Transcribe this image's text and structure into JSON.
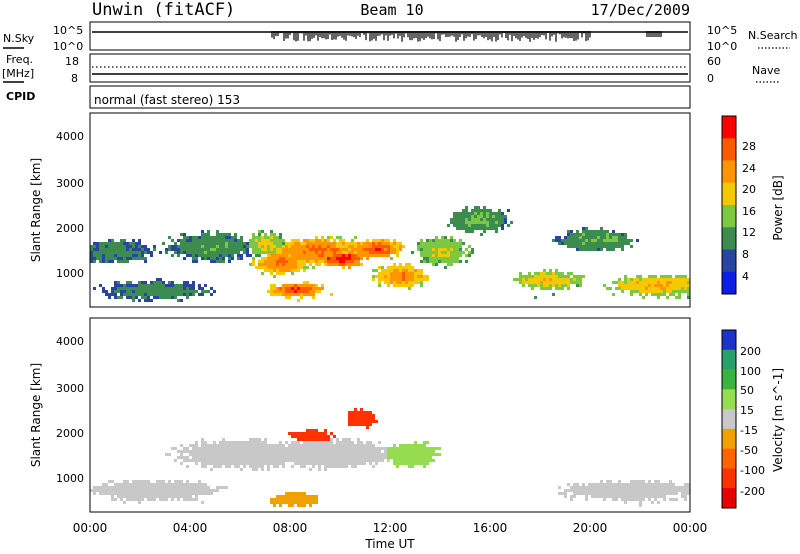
{
  "header": {
    "station": "Unwin (fitACF)",
    "beam": "Beam 10",
    "date": "17/Dec/2009"
  },
  "noise_panel": {
    "left_label": "N.Sky",
    "right_label": "N.Search",
    "left_ticks": [
      "10^5",
      "10^0"
    ],
    "right_ticks": [
      "10^5",
      "10^0"
    ]
  },
  "freq_panel": {
    "left_label_1": "Freq.",
    "left_label_2": "[MHz]",
    "right_label": "Nave",
    "left_ticks": [
      "18",
      "8"
    ],
    "right_ticks": [
      "60",
      "0"
    ]
  },
  "cpid_panel": {
    "label": "CPID",
    "program": "normal (fast stereo) 153"
  },
  "power_panel": {
    "ylabel": "Slant Range [km]",
    "yticks": [
      "4000",
      "3000",
      "2000",
      "1000"
    ],
    "colorbar_label": "Power [dB]",
    "colorbar_ticks": [
      "28",
      "24",
      "20",
      "16",
      "12",
      "8",
      "4"
    ],
    "colorbar_colors": [
      "#ff0000",
      "#ff5a00",
      "#ff9600",
      "#f5c800",
      "#7dc841",
      "#3c8c50",
      "#2846a0",
      "#0a1ee6"
    ]
  },
  "velocity_panel": {
    "ylabel": "Slant Range [km]",
    "yticks": [
      "4000",
      "3000",
      "2000",
      "1000"
    ],
    "colorbar_label": "Velocity [m s^-1]",
    "colorbar_ticks": [
      "200",
      "100",
      "50",
      "15",
      "-15",
      "-50",
      "-100",
      "-200"
    ],
    "colorbar_colors": [
      "#1e32c8",
      "#28a06e",
      "#3cb43c",
      "#96dc50",
      "#c8c8c8",
      "#f0a000",
      "#ff6400",
      "#ff3200",
      "#e60000"
    ]
  },
  "xaxis": {
    "label": "Time UT",
    "ticks": [
      "00:00",
      "04:00",
      "08:00",
      "12:00",
      "16:00",
      "20:00",
      "00:00"
    ]
  },
  "chart_data": {
    "type": "heatmap",
    "title": "Unwin (fitACF) Beam 10 17/Dec/2009",
    "xlabel": "Time UT",
    "ylabel": "Slant Range [km]",
    "x_range_hours": [
      0,
      24
    ],
    "ylim": [
      180,
      4500
    ],
    "series": [
      {
        "name": "Power [dB]",
        "colorbar_range": [
          0,
          30
        ],
        "blobs": [
          {
            "t": 1.0,
            "r": 1450,
            "dt": 1.4,
            "dr": 260,
            "v": 8
          },
          {
            "t": 2.5,
            "r": 600,
            "dt": 2.0,
            "dr": 180,
            "v": 8
          },
          {
            "t": 4.8,
            "r": 1550,
            "dt": 1.6,
            "dr": 300,
            "v": 9
          },
          {
            "t": 7.0,
            "r": 1600,
            "dt": 0.8,
            "dr": 260,
            "v": 15
          },
          {
            "t": 7.6,
            "r": 1200,
            "dt": 1.0,
            "dr": 250,
            "v": 22
          },
          {
            "t": 9.0,
            "r": 1450,
            "dt": 2.0,
            "dr": 300,
            "v": 22
          },
          {
            "t": 10.0,
            "r": 1300,
            "dt": 1.0,
            "dr": 180,
            "v": 27
          },
          {
            "t": 11.4,
            "r": 1500,
            "dt": 1.0,
            "dr": 200,
            "v": 24
          },
          {
            "t": 8.2,
            "r": 600,
            "dt": 1.0,
            "dr": 140,
            "v": 25
          },
          {
            "t": 12.4,
            "r": 900,
            "dt": 1.0,
            "dr": 250,
            "v": 21
          },
          {
            "t": 14.0,
            "r": 1450,
            "dt": 1.0,
            "dr": 300,
            "v": 14
          },
          {
            "t": 15.5,
            "r": 2150,
            "dt": 1.2,
            "dr": 260,
            "v": 10
          },
          {
            "t": 18.3,
            "r": 800,
            "dt": 1.2,
            "dr": 200,
            "v": 17
          },
          {
            "t": 20.2,
            "r": 1700,
            "dt": 1.4,
            "dr": 240,
            "v": 10
          },
          {
            "t": 22.6,
            "r": 700,
            "dt": 1.8,
            "dr": 200,
            "v": 18
          }
        ]
      },
      {
        "name": "Velocity [m s^-1]",
        "colorbar_range": [
          -200,
          200
        ],
        "blobs": [
          {
            "t": 2.5,
            "r": 700,
            "dt": 2.5,
            "dr": 200,
            "v": -5
          },
          {
            "t": 6.0,
            "r": 1500,
            "dt": 2.5,
            "dr": 300,
            "v": -5
          },
          {
            "t": 9.5,
            "r": 1500,
            "dt": 2.5,
            "dr": 300,
            "v": -5
          },
          {
            "t": 8.8,
            "r": 1900,
            "dt": 0.8,
            "dr": 150,
            "v": -150
          },
          {
            "t": 8.2,
            "r": 500,
            "dt": 0.9,
            "dr": 120,
            "v": -60
          },
          {
            "t": 12.8,
            "r": 1500,
            "dt": 1.0,
            "dr": 260,
            "v": 60
          },
          {
            "t": 10.8,
            "r": 2300,
            "dt": 0.6,
            "dr": 200,
            "v": -150
          },
          {
            "t": 21.5,
            "r": 700,
            "dt": 2.5,
            "dr": 200,
            "v": -5
          }
        ]
      }
    ]
  }
}
